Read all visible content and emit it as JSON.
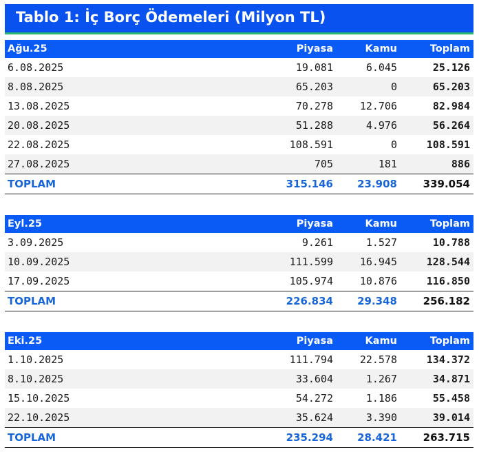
{
  "title": "Tablo 1: İç Borç Ödemeleri (Milyon TL)",
  "columns": [
    "Piyasa",
    "Kamu",
    "Toplam"
  ],
  "tables": [
    {
      "period": "Ağu.25",
      "rows": [
        [
          "6.08.2025",
          "19.081",
          "6.045",
          "25.126"
        ],
        [
          "8.08.2025",
          "65.203",
          "0",
          "65.203"
        ],
        [
          "13.08.2025",
          "70.278",
          "12.706",
          "82.984"
        ],
        [
          "20.08.2025",
          "51.288",
          "4.976",
          "56.264"
        ],
        [
          "22.08.2025",
          "108.591",
          "0",
          "108.591"
        ],
        [
          "27.08.2025",
          "705",
          "181",
          "886"
        ]
      ],
      "total": [
        "TOPLAM",
        "315.146",
        "23.908",
        "339.054"
      ]
    },
    {
      "period": "Eyl.25",
      "rows": [
        [
          "3.09.2025",
          "9.261",
          "1.527",
          "10.788"
        ],
        [
          "10.09.2025",
          "111.599",
          "16.945",
          "128.544"
        ],
        [
          "17.09.2025",
          "105.974",
          "10.876",
          "116.850"
        ]
      ],
      "total": [
        "TOPLAM",
        "226.834",
        "29.348",
        "256.182"
      ]
    },
    {
      "period": "Eki.25",
      "rows": [
        [
          "1.10.2025",
          "111.794",
          "22.578",
          "134.372"
        ],
        [
          "8.10.2025",
          "33.604",
          "1.267",
          "34.871"
        ],
        [
          "15.10.2025",
          "54.272",
          "1.186",
          "55.458"
        ],
        [
          "22.10.2025",
          "35.624",
          "3.390",
          "39.014"
        ]
      ],
      "total": [
        "TOPLAM",
        "235.294",
        "28.421",
        "263.715"
      ]
    }
  ]
}
